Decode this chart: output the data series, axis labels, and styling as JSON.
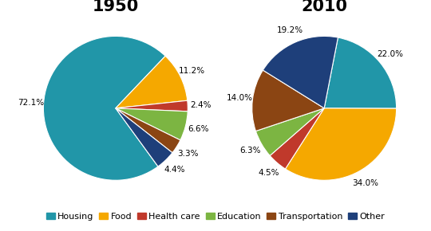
{
  "title_1950": "1950",
  "title_2010": "2010",
  "categories": [
    "Housing",
    "Food",
    "Health care",
    "Education",
    "Transportation",
    "Other"
  ],
  "colors": [
    "#2196a8",
    "#f5a800",
    "#c0392b",
    "#7cb542",
    "#8b4513",
    "#1e3f7a"
  ],
  "values_1950": [
    72.1,
    11.2,
    2.4,
    6.6,
    3.3,
    4.4
  ],
  "values_2010": [
    22.0,
    34.0,
    4.5,
    6.3,
    14.0,
    19.2
  ],
  "startangle_1950": -54,
  "startangle_2010": 79,
  "title_fontsize": 15,
  "label_fontsize": 7.5,
  "legend_fontsize": 8,
  "figsize": [
    5.4,
    2.9
  ],
  "dpi": 100
}
